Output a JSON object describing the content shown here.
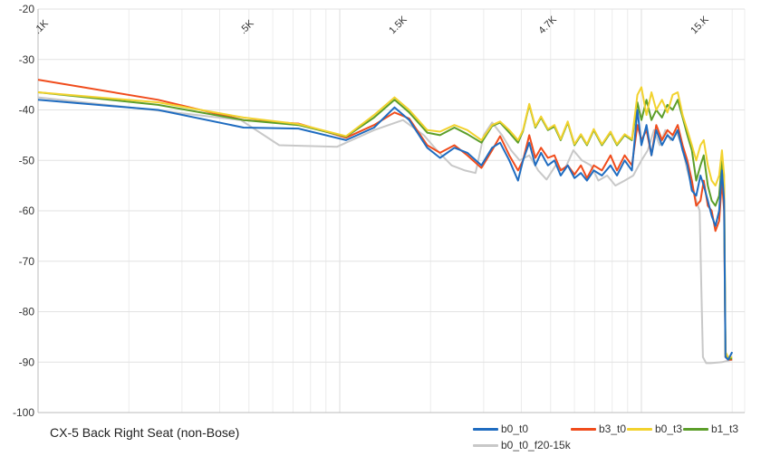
{
  "chart_data": {
    "type": "line",
    "title": "CX-5 Back Right Seat (non-Bose)",
    "xscale": "log",
    "xlim": [
      100,
      22000
    ],
    "ylim": [
      -100,
      -20
    ],
    "y_ticks": [
      "-20",
      "-30",
      "-40",
      "-50",
      "-60",
      "-70",
      "-80",
      "-90",
      "-100"
    ],
    "x_ticks": [
      {
        "label": ".1K",
        "value": 100
      },
      {
        "label": ".5K",
        "value": 480
      },
      {
        "label": "1.5K",
        "value": 1500
      },
      {
        "label": "4.7K",
        "value": 4700
      },
      {
        "label": "15.K",
        "value": 15000
      }
    ],
    "colors": {
      "b0_t0": "#1f6cc0",
      "b3_t0": "#f04c1c",
      "b0_t3": "#f2d22e",
      "b1_t3": "#5c9e2a",
      "b0_t0_f20-15k": "#c8c8c8"
    },
    "series": [
      {
        "name": "b0_t0_f20-15k",
        "points": [
          [
            100,
            -37.5
          ],
          [
            240,
            -40
          ],
          [
            470,
            -42
          ],
          [
            630,
            -47
          ],
          [
            980,
            -47.3
          ],
          [
            1300,
            -44
          ],
          [
            1620,
            -42
          ],
          [
            1900,
            -45
          ],
          [
            2100,
            -48
          ],
          [
            2350,
            -51
          ],
          [
            2600,
            -52
          ],
          [
            2820,
            -52.5
          ],
          [
            3000,
            -45
          ],
          [
            3200,
            -42.5
          ],
          [
            3450,
            -45
          ],
          [
            3700,
            -48
          ],
          [
            3950,
            -50
          ],
          [
            4250,
            -49
          ],
          [
            4550,
            -52
          ],
          [
            4850,
            -53.8
          ],
          [
            5200,
            -51
          ],
          [
            5550,
            -52
          ],
          [
            5950,
            -48
          ],
          [
            6350,
            -50
          ],
          [
            6800,
            -51
          ],
          [
            7200,
            -54
          ],
          [
            7700,
            -53
          ],
          [
            8200,
            -55
          ],
          [
            8800,
            -54
          ],
          [
            9400,
            -53
          ],
          [
            10000,
            -50
          ],
          [
            10500,
            -48
          ],
          [
            11000,
            -44
          ],
          [
            11500,
            -47
          ],
          [
            12000,
            -44
          ],
          [
            12500,
            -46
          ],
          [
            13000,
            -44
          ],
          [
            13600,
            -47
          ],
          [
            14200,
            -52
          ],
          [
            14700,
            -55
          ],
          [
            15200,
            -58
          ],
          [
            15600,
            -60
          ],
          [
            15800,
            -75
          ],
          [
            16000,
            -89
          ],
          [
            16400,
            -90.2
          ],
          [
            17000,
            -90.2
          ],
          [
            18500,
            -90
          ],
          [
            20000,
            -89.5
          ]
        ]
      },
      {
        "name": "b3_t0",
        "points": [
          [
            100,
            -34
          ],
          [
            250,
            -38
          ],
          [
            480,
            -42
          ],
          [
            730,
            -42.7
          ],
          [
            1050,
            -45.5
          ],
          [
            1300,
            -43
          ],
          [
            1520,
            -40.5
          ],
          [
            1700,
            -41.7
          ],
          [
            1950,
            -47
          ],
          [
            2150,
            -48.5
          ],
          [
            2400,
            -47
          ],
          [
            2650,
            -49
          ],
          [
            2950,
            -51.5
          ],
          [
            3200,
            -48
          ],
          [
            3400,
            -45.2
          ],
          [
            3650,
            -49
          ],
          [
            3900,
            -52
          ],
          [
            4050,
            -50
          ],
          [
            4250,
            -45
          ],
          [
            4450,
            -49.5
          ],
          [
            4650,
            -47.5
          ],
          [
            4900,
            -49.5
          ],
          [
            5150,
            -49
          ],
          [
            5400,
            -52
          ],
          [
            5700,
            -51
          ],
          [
            6000,
            -52.8
          ],
          [
            6300,
            -51
          ],
          [
            6600,
            -53.5
          ],
          [
            6950,
            -51
          ],
          [
            7400,
            -52
          ],
          [
            7900,
            -49
          ],
          [
            8300,
            -52
          ],
          [
            8800,
            -49
          ],
          [
            9300,
            -51
          ],
          [
            9700,
            -43
          ],
          [
            10000,
            -46
          ],
          [
            10400,
            -44
          ],
          [
            10800,
            -49
          ],
          [
            11200,
            -43
          ],
          [
            11700,
            -46
          ],
          [
            12200,
            -44
          ],
          [
            12700,
            -45
          ],
          [
            13200,
            -43
          ],
          [
            13700,
            -47
          ],
          [
            14200,
            -50
          ],
          [
            14700,
            -54
          ],
          [
            15200,
            -59
          ],
          [
            15700,
            -58
          ],
          [
            16100,
            -54
          ],
          [
            16600,
            -59
          ],
          [
            17100,
            -60
          ],
          [
            17600,
            -64
          ],
          [
            18100,
            -62
          ],
          [
            18500,
            -54
          ],
          [
            18800,
            -60
          ],
          [
            19000,
            -89
          ],
          [
            19400,
            -89.5
          ],
          [
            20000,
            -89.5
          ]
        ]
      },
      {
        "name": "b1_t3",
        "points": [
          [
            100,
            -36.5
          ],
          [
            250,
            -39
          ],
          [
            480,
            -42
          ],
          [
            730,
            -43
          ],
          [
            1050,
            -45.3
          ],
          [
            1300,
            -41.5
          ],
          [
            1520,
            -38
          ],
          [
            1700,
            -40.5
          ],
          [
            1950,
            -44.5
          ],
          [
            2150,
            -45
          ],
          [
            2400,
            -43.5
          ],
          [
            2650,
            -44.8
          ],
          [
            2950,
            -46.5
          ],
          [
            3200,
            -43.2
          ],
          [
            3400,
            -42.5
          ],
          [
            3650,
            -44.5
          ],
          [
            3900,
            -46.5
          ],
          [
            4050,
            -44.2
          ],
          [
            4250,
            -39
          ],
          [
            4450,
            -43.5
          ],
          [
            4650,
            -41.5
          ],
          [
            4900,
            -44
          ],
          [
            5150,
            -43.3
          ],
          [
            5400,
            -46
          ],
          [
            5700,
            -42.5
          ],
          [
            6000,
            -47
          ],
          [
            6300,
            -45
          ],
          [
            6600,
            -47
          ],
          [
            6950,
            -44
          ],
          [
            7400,
            -47
          ],
          [
            7900,
            -44.5
          ],
          [
            8300,
            -47
          ],
          [
            8800,
            -45
          ],
          [
            9300,
            -46
          ],
          [
            9700,
            -38.5
          ],
          [
            10000,
            -42
          ],
          [
            10400,
            -38
          ],
          [
            10800,
            -42
          ],
          [
            11200,
            -40
          ],
          [
            11700,
            -41.5
          ],
          [
            12200,
            -39
          ],
          [
            12700,
            -40
          ],
          [
            13200,
            -38
          ],
          [
            13700,
            -41.5
          ],
          [
            14200,
            -45
          ],
          [
            14700,
            -48
          ],
          [
            15200,
            -54
          ],
          [
            15700,
            -51
          ],
          [
            16100,
            -49
          ],
          [
            16600,
            -55
          ],
          [
            17100,
            -58
          ],
          [
            17600,
            -59
          ],
          [
            18100,
            -57
          ],
          [
            18500,
            -50
          ],
          [
            18800,
            -55
          ],
          [
            19000,
            -88.5
          ],
          [
            19400,
            -89.3
          ],
          [
            20000,
            -89.3
          ]
        ]
      },
      {
        "name": "b0_t3",
        "points": [
          [
            100,
            -36.5
          ],
          [
            250,
            -38.5
          ],
          [
            480,
            -41.5
          ],
          [
            730,
            -42.8
          ],
          [
            1050,
            -45.2
          ],
          [
            1300,
            -41
          ],
          [
            1520,
            -37.5
          ],
          [
            1700,
            -40
          ],
          [
            1950,
            -44
          ],
          [
            2150,
            -44.3
          ],
          [
            2400,
            -43
          ],
          [
            2650,
            -44
          ],
          [
            2950,
            -46
          ],
          [
            3200,
            -43
          ],
          [
            3400,
            -42.3
          ],
          [
            3650,
            -44
          ],
          [
            3900,
            -46
          ],
          [
            4050,
            -44
          ],
          [
            4250,
            -38.8
          ],
          [
            4450,
            -43.3
          ],
          [
            4650,
            -41.3
          ],
          [
            4900,
            -43.8
          ],
          [
            5150,
            -43
          ],
          [
            5400,
            -45.8
          ],
          [
            5700,
            -42.3
          ],
          [
            6000,
            -46.8
          ],
          [
            6300,
            -44.8
          ],
          [
            6600,
            -46.8
          ],
          [
            6950,
            -43.8
          ],
          [
            7400,
            -46.8
          ],
          [
            7900,
            -44.3
          ],
          [
            8300,
            -46.8
          ],
          [
            8800,
            -44.8
          ],
          [
            9300,
            -45.8
          ],
          [
            9700,
            -37
          ],
          [
            10000,
            -35.5
          ],
          [
            10400,
            -41
          ],
          [
            10800,
            -36.5
          ],
          [
            11200,
            -40
          ],
          [
            11700,
            -38
          ],
          [
            12200,
            -40.5
          ],
          [
            12700,
            -37
          ],
          [
            13200,
            -36.5
          ],
          [
            13700,
            -41
          ],
          [
            14200,
            -44
          ],
          [
            14700,
            -47
          ],
          [
            15200,
            -50
          ],
          [
            15700,
            -47
          ],
          [
            16100,
            -46
          ],
          [
            16600,
            -51
          ],
          [
            17100,
            -54
          ],
          [
            17600,
            -55
          ],
          [
            18100,
            -53
          ],
          [
            18500,
            -48
          ],
          [
            18800,
            -53
          ],
          [
            19000,
            -88
          ],
          [
            19400,
            -89
          ],
          [
            20000,
            -89
          ]
        ]
      },
      {
        "name": "b0_t0",
        "points": [
          [
            100,
            -38
          ],
          [
            250,
            -40
          ],
          [
            480,
            -43.5
          ],
          [
            730,
            -43.7
          ],
          [
            1050,
            -46
          ],
          [
            1300,
            -43.5
          ],
          [
            1520,
            -39.5
          ],
          [
            1700,
            -42
          ],
          [
            1950,
            -47.5
          ],
          [
            2150,
            -49.5
          ],
          [
            2400,
            -47.5
          ],
          [
            2650,
            -48.5
          ],
          [
            2950,
            -51
          ],
          [
            3200,
            -47.5
          ],
          [
            3400,
            -46.5
          ],
          [
            3650,
            -50
          ],
          [
            3900,
            -54
          ],
          [
            4050,
            -50
          ],
          [
            4250,
            -46.5
          ],
          [
            4450,
            -51
          ],
          [
            4650,
            -48.5
          ],
          [
            4900,
            -51
          ],
          [
            5150,
            -50
          ],
          [
            5400,
            -53
          ],
          [
            5700,
            -51
          ],
          [
            6000,
            -53.5
          ],
          [
            6300,
            -52.5
          ],
          [
            6600,
            -54
          ],
          [
            6950,
            -52
          ],
          [
            7400,
            -53
          ],
          [
            7900,
            -51
          ],
          [
            8300,
            -53
          ],
          [
            8800,
            -50
          ],
          [
            9300,
            -52
          ],
          [
            9700,
            -40
          ],
          [
            10000,
            -47
          ],
          [
            10400,
            -43
          ],
          [
            10800,
            -49
          ],
          [
            11200,
            -44
          ],
          [
            11700,
            -47
          ],
          [
            12200,
            -45
          ],
          [
            12700,
            -46
          ],
          [
            13200,
            -44
          ],
          [
            13700,
            -48
          ],
          [
            14200,
            -51
          ],
          [
            14700,
            -56
          ],
          [
            15200,
            -57
          ],
          [
            15700,
            -53
          ],
          [
            16100,
            -55
          ],
          [
            16600,
            -58
          ],
          [
            17100,
            -61
          ],
          [
            17600,
            -63
          ],
          [
            18100,
            -60
          ],
          [
            18500,
            -52
          ],
          [
            18800,
            -58
          ],
          [
            19000,
            -89
          ],
          [
            19400,
            -89.5
          ],
          [
            20000,
            -88
          ]
        ]
      }
    ],
    "legend": [
      {
        "name": "b0_t0"
      },
      {
        "name": "b3_t0"
      },
      {
        "name": "b0_t3"
      },
      {
        "name": "b1_t3"
      },
      {
        "name": "b0_t0_f20-15k"
      }
    ]
  }
}
